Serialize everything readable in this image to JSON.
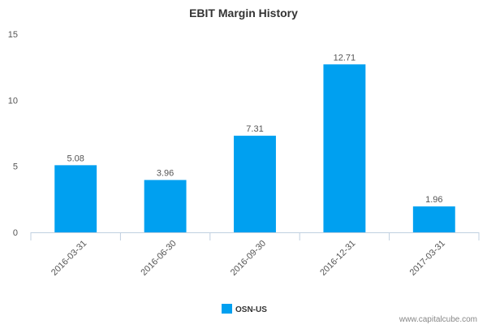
{
  "chart_data": {
    "type": "bar",
    "title": "EBIT Margin History",
    "xlabel": "",
    "ylabel": "",
    "categories": [
      "2016-03-31",
      "2016-06-30",
      "2016-09-30",
      "2016-12-31",
      "2017-03-31"
    ],
    "series": [
      {
        "name": "OSN-US",
        "values": [
          5.08,
          3.96,
          7.31,
          12.71,
          1.96
        ],
        "color": "#00a0f0"
      }
    ],
    "data_labels": [
      "5.08",
      "3.96",
      "7.31",
      "12.71",
      "1.96"
    ],
    "ylim": [
      0,
      15
    ],
    "yticks": [
      0,
      5,
      10,
      15
    ],
    "ytick_labels": [
      "0",
      "5",
      "10",
      "15"
    ],
    "grid": false,
    "legend_position": "bottom-center"
  },
  "legend": {
    "label": "OSN-US",
    "color": "#00a0f0"
  },
  "footer": {
    "text": "www.capitalcube.com"
  },
  "colors": {
    "bar": "#00a0f0",
    "axis": "#c0d0e0",
    "text": "#555555"
  }
}
